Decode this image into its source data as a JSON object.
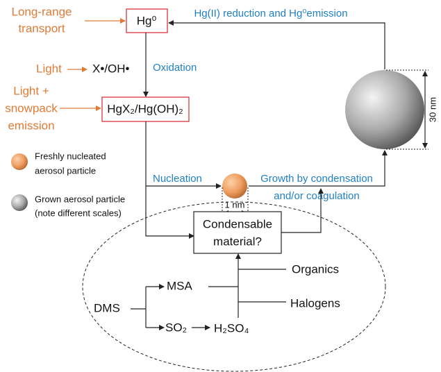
{
  "hg0": "Hg⁰",
  "long_range_transport": [
    "Long-range",
    "transport"
  ],
  "emission_label": "Hg(II) reduction and Hg⁰emission",
  "light": "Light",
  "radicals": "X•/OH•",
  "oxidation": "Oxidation",
  "light_snowpack": [
    "Light +",
    "snowpack",
    "emission"
  ],
  "hgx2": "HgX₂/Hg(OH)₂",
  "legend": [
    {
      "label": [
        "Freshly nucleated",
        "aerosol particle"
      ]
    },
    {
      "label": [
        "Grown aerosol particle",
        "(note different scales)"
      ]
    }
  ],
  "nucleation": "Nucleation",
  "growth": [
    "Growth by condensation",
    "and/or coagulation"
  ],
  "small_scale": "1 nm",
  "large_scale": "30 nm",
  "condensable": [
    "Condensable",
    "material?"
  ],
  "organics": "Organics",
  "halogens": "Halogens",
  "msa": "MSA",
  "dms": "DMS",
  "so2": "SO₂",
  "h2so4": "H₂SO₄"
}
